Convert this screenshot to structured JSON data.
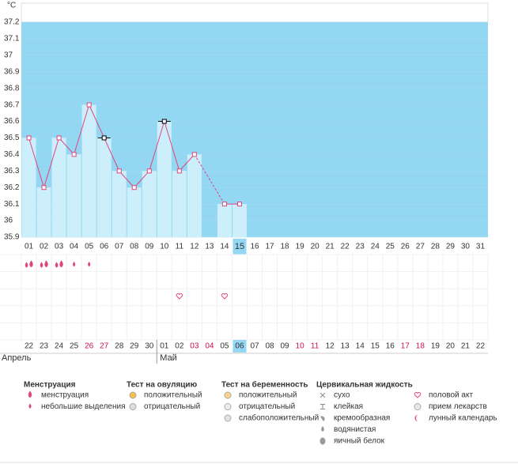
{
  "chart_data": {
    "type": "line",
    "ylabel": "°C",
    "categories": [
      "01",
      "02",
      "03",
      "04",
      "05",
      "06",
      "07",
      "08",
      "09",
      "10",
      "11",
      "12",
      "13",
      "14",
      "15",
      "16",
      "17",
      "18",
      "19",
      "20",
      "21",
      "22",
      "23",
      "24",
      "25",
      "26",
      "27",
      "28",
      "29",
      "30",
      "31"
    ],
    "series": [
      {
        "name": "temperature",
        "color": "#e0457b",
        "values": [
          36.5,
          36.2,
          36.5,
          36.4,
          36.7,
          36.5,
          36.3,
          36.2,
          36.3,
          36.6,
          36.3,
          36.4,
          null,
          36.1,
          36.1,
          null,
          null,
          null,
          null,
          null,
          null,
          null,
          null,
          null,
          null,
          null,
          null,
          null,
          null,
          null,
          null
        ]
      }
    ],
    "black_markers": [
      "06",
      "10"
    ],
    "ylim": [
      35.9,
      37.2
    ],
    "yticks": [
      35.9,
      36,
      36.1,
      36.2,
      36.3,
      36.4,
      36.5,
      36.6,
      36.7,
      36.8,
      36.9,
      37,
      37.1,
      37.2
    ],
    "today": "15",
    "symptoms": {
      "menstruation": [
        "01",
        "02",
        "03"
      ],
      "spotting": [
        "04",
        "05"
      ],
      "intercourse": [
        "11",
        "14"
      ]
    },
    "dates": [
      "22",
      "23",
      "24",
      "25",
      "26",
      "27",
      "28",
      "29",
      "30",
      "01",
      "02",
      "03",
      "04",
      "05",
      "06",
      "07",
      "08",
      "09",
      "10",
      "11",
      "12",
      "13",
      "14",
      "15",
      "16",
      "17",
      "18",
      "19",
      "20",
      "21",
      "22"
    ],
    "weekends": [
      4,
      5,
      11,
      12,
      18,
      19,
      25,
      26
    ],
    "months": [
      {
        "name": "Апрель",
        "start": 0
      },
      {
        "name": "Май",
        "start": 9
      }
    ]
  },
  "legend": [
    {
      "heading": "Менструация",
      "items": [
        "менструация",
        "небольшие выделения"
      ]
    },
    {
      "heading": "Тест на овуляцию",
      "items": [
        "положительный",
        "отрицательный"
      ]
    },
    {
      "heading": "Тест на беременность",
      "items": [
        "положительный",
        "отрицательный",
        "слабоположительный"
      ]
    },
    {
      "heading": "Цервикальная жидкость",
      "items": [
        "сухо",
        "клейкая",
        "кремообразная",
        "водянистая",
        "яичный белок"
      ]
    },
    {
      "heading": "",
      "items": [
        "половой акт",
        "прием лекарств",
        "лунный календарь"
      ]
    }
  ]
}
